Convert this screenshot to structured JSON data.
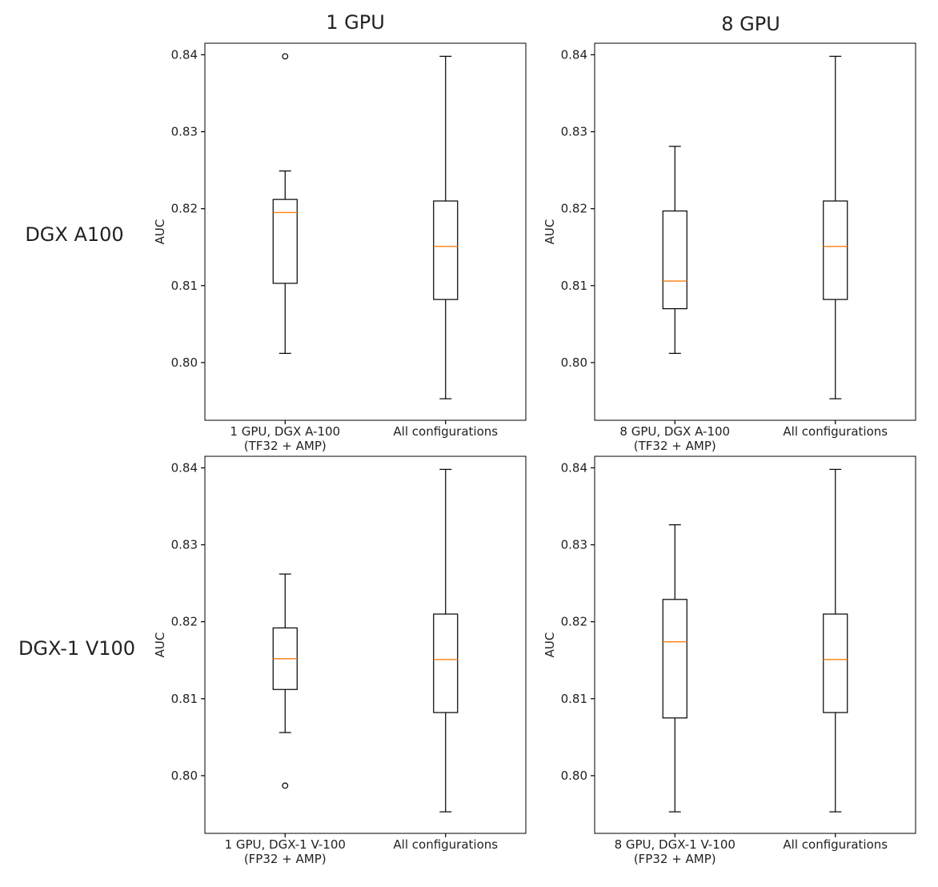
{
  "column_titles": [
    "1 GPU",
    "8 GPU"
  ],
  "row_titles": [
    "DGX A100",
    "DGX-1 V100"
  ],
  "chart_data": [
    {
      "type": "box",
      "ylabel": "AUC",
      "ylim": [
        0.7925,
        0.8415
      ],
      "yticks": [
        "0.80",
        "0.81",
        "0.82",
        "0.83",
        "0.84"
      ],
      "grid": false,
      "boxes": [
        {
          "label": [
            "1 GPU, DGX A-100",
            "(TF32 + AMP)"
          ],
          "whislo": 0.8012,
          "q1": 0.8103,
          "med": 0.8195,
          "q3": 0.8212,
          "whishi": 0.8249,
          "fliers": [
            0.8398
          ]
        },
        {
          "label": [
            "All configurations"
          ],
          "whislo": 0.7953,
          "q1": 0.8082,
          "med": 0.8151,
          "q3": 0.821,
          "whishi": 0.8398,
          "fliers": []
        }
      ]
    },
    {
      "type": "box",
      "ylabel": "AUC",
      "ylim": [
        0.7925,
        0.8415
      ],
      "yticks": [
        "0.80",
        "0.81",
        "0.82",
        "0.83",
        "0.84"
      ],
      "grid": false,
      "boxes": [
        {
          "label": [
            "8 GPU, DGX A-100",
            "(TF32 + AMP)"
          ],
          "whislo": 0.8012,
          "q1": 0.807,
          "med": 0.8106,
          "q3": 0.8197,
          "whishi": 0.8281,
          "fliers": []
        },
        {
          "label": [
            "All configurations"
          ],
          "whislo": 0.7953,
          "q1": 0.8082,
          "med": 0.8151,
          "q3": 0.821,
          "whishi": 0.8398,
          "fliers": []
        }
      ]
    },
    {
      "type": "box",
      "ylabel": "AUC",
      "ylim": [
        0.7925,
        0.8415
      ],
      "yticks": [
        "0.80",
        "0.81",
        "0.82",
        "0.83",
        "0.84"
      ],
      "grid": false,
      "boxes": [
        {
          "label": [
            "1 GPU, DGX-1 V-100",
            "(FP32 + AMP)"
          ],
          "whislo": 0.8056,
          "q1": 0.8112,
          "med": 0.8152,
          "q3": 0.8192,
          "whishi": 0.8262,
          "fliers": [
            0.7987
          ]
        },
        {
          "label": [
            "All configurations"
          ],
          "whislo": 0.7953,
          "q1": 0.8082,
          "med": 0.8151,
          "q3": 0.821,
          "whishi": 0.8398,
          "fliers": []
        }
      ]
    },
    {
      "type": "box",
      "ylabel": "AUC",
      "ylim": [
        0.7925,
        0.8415
      ],
      "yticks": [
        "0.80",
        "0.81",
        "0.82",
        "0.83",
        "0.84"
      ],
      "grid": false,
      "boxes": [
        {
          "label": [
            "8 GPU, DGX-1 V-100",
            "(FP32 + AMP)"
          ],
          "whislo": 0.7953,
          "q1": 0.8075,
          "med": 0.8174,
          "q3": 0.8229,
          "whishi": 0.8326,
          "fliers": []
        },
        {
          "label": [
            "All configurations"
          ],
          "whislo": 0.7953,
          "q1": 0.8082,
          "med": 0.8151,
          "q3": 0.821,
          "whishi": 0.8398,
          "fliers": []
        }
      ]
    }
  ],
  "colors": {
    "box": "#000000",
    "median": "#ff7f0e",
    "text": "#222222"
  }
}
